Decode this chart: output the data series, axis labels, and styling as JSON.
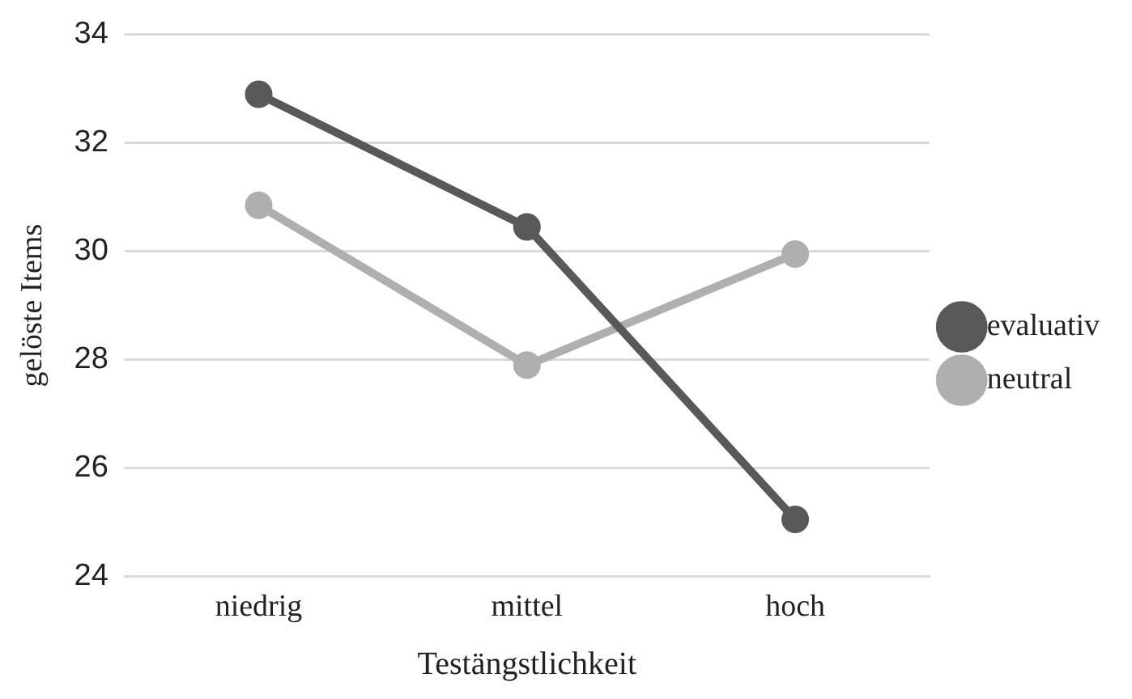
{
  "chart_data": {
    "type": "line",
    "xlabel": "Testängstlichkeit",
    "ylabel": "gelöste Items",
    "categories": [
      "niedrig",
      "mittel",
      "hoch"
    ],
    "series": [
      {
        "name": "evaluativ",
        "color": "#595959",
        "values": [
          32.9,
          30.45,
          25.05
        ]
      },
      {
        "name": "neutral",
        "color": "#afafaf",
        "values": [
          30.85,
          27.9,
          29.95
        ]
      }
    ],
    "ylim": [
      24,
      34
    ],
    "yticks": [
      24,
      26,
      28,
      30,
      32,
      34
    ],
    "grid": "y",
    "legend": "right",
    "marker": "circle",
    "line_style": "solid"
  }
}
